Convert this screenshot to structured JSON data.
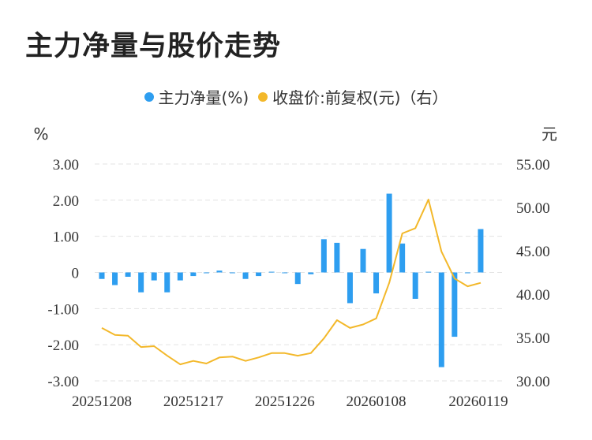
{
  "title": "主力净量与股价走势",
  "legend": {
    "main": "主力净量(%)",
    "price": "收盘价:前复权(元)（右）"
  },
  "colors": {
    "bar": "#2e9ef0",
    "line": "#f3b82a",
    "grid": "#e3e3e3",
    "axis_text": "#333333"
  },
  "chart_data": {
    "type": "bar+line",
    "title": "主力净量与股价走势",
    "left_unit": "%",
    "right_unit": "元",
    "left_ylim": [
      -3.0,
      3.0
    ],
    "right_ylim": [
      30.0,
      55.0
    ],
    "left_ticks": [
      "3.00",
      "2.00",
      "1.00",
      "0",
      "-1.00",
      "-2.00",
      "-3.00"
    ],
    "right_ticks": [
      "55.00",
      "50.00",
      "45.00",
      "40.00",
      "35.00",
      "30.00"
    ],
    "x_tick_labels": [
      "20251208",
      "20251217",
      "20251226",
      "20260108",
      "20260119"
    ],
    "x_tick_indices": [
      0,
      7,
      14,
      21,
      28
    ],
    "grid": true,
    "legend_position": "top-center",
    "series": [
      {
        "name": "主力净量(%)",
        "type": "bar",
        "axis": "left",
        "values": [
          -0.18,
          -0.35,
          -0.12,
          -0.55,
          -0.22,
          -0.55,
          -0.22,
          -0.1,
          -0.02,
          0.05,
          -0.02,
          -0.18,
          -0.1,
          0.02,
          -0.02,
          -0.32,
          -0.05,
          0.92,
          0.82,
          -0.85,
          0.65,
          -0.58,
          2.18,
          0.8,
          -0.73,
          0.02,
          -2.62,
          -1.78,
          -0.02,
          1.2
        ]
      },
      {
        "name": "收盘价:前复权(元)（右）",
        "type": "line",
        "axis": "right",
        "values": [
          36.1,
          35.3,
          35.2,
          33.9,
          34.0,
          32.9,
          31.9,
          32.3,
          32.0,
          32.7,
          32.8,
          32.3,
          32.7,
          33.2,
          33.2,
          32.9,
          33.2,
          34.9,
          37.0,
          36.1,
          36.5,
          37.2,
          41.3,
          47.0,
          47.6,
          50.9,
          44.9,
          41.8,
          40.9,
          41.3
        ]
      }
    ]
  }
}
